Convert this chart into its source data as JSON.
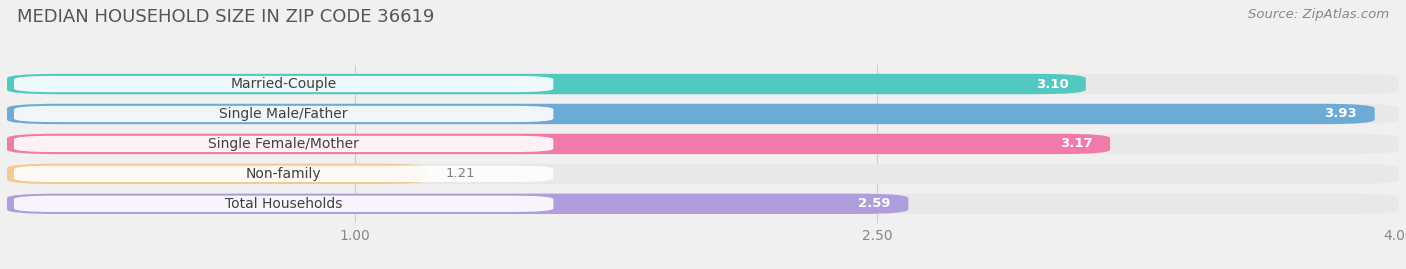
{
  "title": "MEDIAN HOUSEHOLD SIZE IN ZIP CODE 36619",
  "source": "Source: ZipAtlas.com",
  "categories": [
    "Married-Couple",
    "Single Male/Father",
    "Single Female/Mother",
    "Non-family",
    "Total Households"
  ],
  "values": [
    3.1,
    3.93,
    3.17,
    1.21,
    2.59
  ],
  "bar_colors": [
    "#52c8c0",
    "#6babd6",
    "#f07aaa",
    "#f5c896",
    "#b09ddb"
  ],
  "xmin": 0.0,
  "xmax": 4.0,
  "xticks": [
    1.0,
    2.5,
    4.0
  ],
  "bar_height": 0.68,
  "title_fontsize": 13,
  "source_fontsize": 9.5,
  "label_fontsize": 10,
  "value_fontsize": 9.5,
  "tick_fontsize": 10,
  "background_color": "#f0f0f0",
  "bar_bg_color": "#e8e8e8",
  "label_pill_color": "#ffffff"
}
